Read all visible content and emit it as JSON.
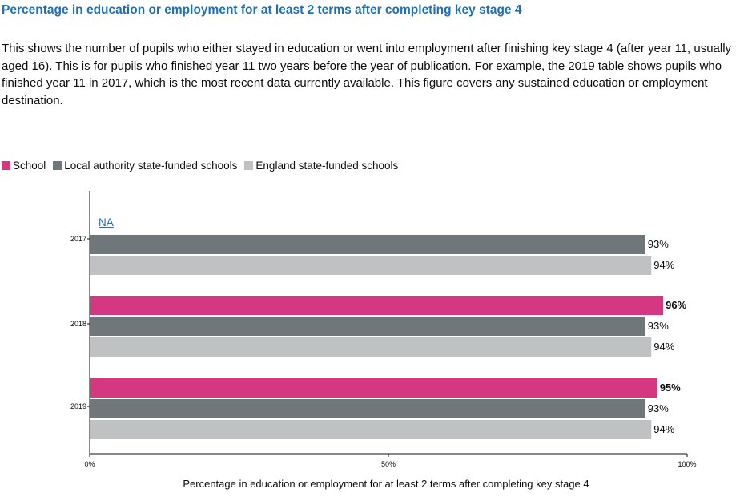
{
  "title": "Percentage in education or employment for at least 2 terms after completing key stage 4",
  "description": "This shows the number of pupils who either stayed in education or went into employment after finishing key stage 4 (after year 11, usually aged 16). This is for pupils who finished year 11 two years before the year of publication. For example, the 2019 table shows pupils who finished year 11 in 2017, which is the most recent data currently available. This figure covers any sustained education or employment destination.",
  "colors": {
    "title": "#1d70b8",
    "school": "#d53880",
    "local_authority": "#6f777b",
    "england": "#bfc1c3",
    "link": "#1d70b8"
  },
  "chart_data": {
    "type": "bar",
    "orientation": "horizontal",
    "categories": [
      "2017",
      "2018",
      "2019"
    ],
    "series": [
      {
        "name": "School",
        "color": "#d53880",
        "values": [
          null,
          96,
          95
        ],
        "labels": [
          "NA",
          "96%",
          "95%"
        ]
      },
      {
        "name": "Local authority state-funded schools",
        "color": "#6f777b",
        "values": [
          93,
          93,
          93
        ],
        "labels": [
          "93%",
          "93%",
          "93%"
        ]
      },
      {
        "name": "England state-funded schools",
        "color": "#bfc1c3",
        "values": [
          94,
          94,
          94
        ],
        "labels": [
          "94%",
          "94%",
          "94%"
        ]
      }
    ],
    "xlim": [
      0,
      100
    ],
    "xticks": [
      0,
      50,
      100
    ],
    "xtick_labels": [
      "0%",
      "50%",
      "100%"
    ],
    "xlabel": "Percentage in education or employment for at least 2 terms after completing key stage 4",
    "ylabel": "",
    "grid": false,
    "legend_position": "top-left"
  }
}
